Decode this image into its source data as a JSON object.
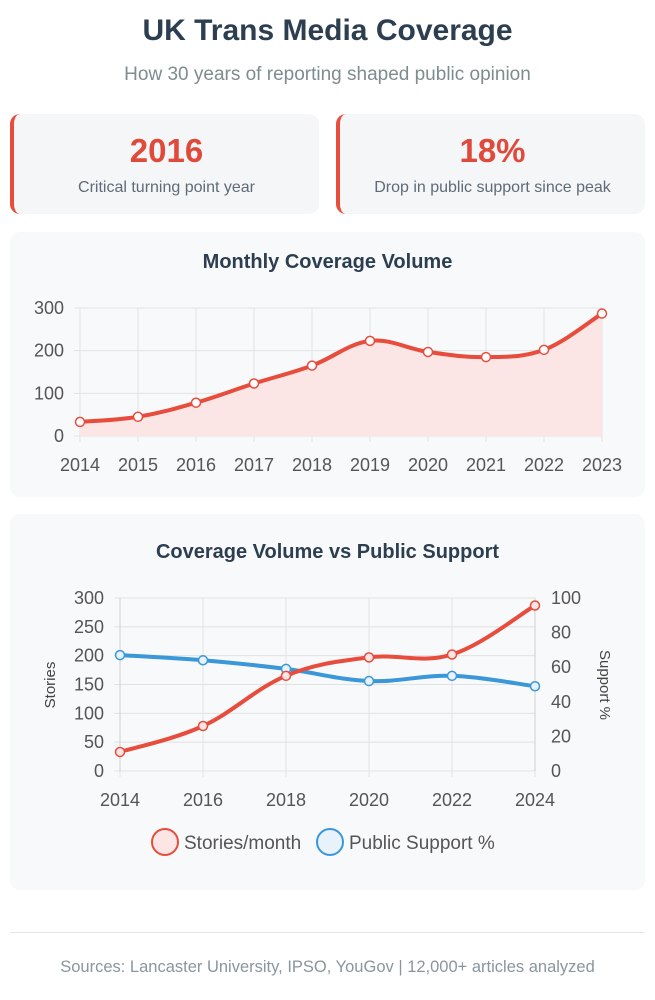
{
  "header": {
    "title": "UK Trans Media Coverage",
    "subtitle": "How 30 years of reporting shaped public opinion"
  },
  "stats": [
    {
      "value": "2016",
      "label": "Critical turning point year"
    },
    {
      "value": "18%",
      "label": "Drop in public support since peak"
    }
  ],
  "colors": {
    "accent": "#e74c3c",
    "support": "#3a97d8",
    "area_fill": "#fbe5e5"
  },
  "chart_data": [
    {
      "type": "area",
      "title": "Monthly Coverage Volume",
      "x": [
        "2014",
        "2015",
        "2016",
        "2017",
        "2018",
        "2019",
        "2020",
        "2021",
        "2022",
        "2023"
      ],
      "series": [
        {
          "name": "Stories/month",
          "values": [
            33,
            45,
            78,
            123,
            165,
            223,
            197,
            185,
            202,
            287
          ]
        }
      ],
      "ylim": [
        0,
        300
      ],
      "yticks": [
        0,
        100,
        200,
        300
      ],
      "xlabel": "",
      "ylabel": "",
      "grid": true
    },
    {
      "type": "line",
      "title": "Coverage Volume vs Public Support",
      "x": [
        "2014",
        "2016",
        "2018",
        "2020",
        "2022",
        "2024"
      ],
      "series": [
        {
          "name": "Stories/month",
          "axis": "left",
          "values": [
            33,
            78,
            165,
            197,
            202,
            287
          ]
        },
        {
          "name": "Public Support %",
          "axis": "right",
          "values": [
            67,
            64,
            59,
            52,
            55,
            49
          ]
        }
      ],
      "ylim_left": [
        0,
        300
      ],
      "yticks_left": [
        0,
        50,
        100,
        150,
        200,
        250,
        300
      ],
      "ylim_right": [
        0,
        100
      ],
      "yticks_right": [
        0,
        20,
        40,
        60,
        80,
        100
      ],
      "ylabel_left": "Stories",
      "ylabel_right": "Support %",
      "legend": "bottom",
      "grid": true
    }
  ],
  "footer": {
    "text": "Sources: Lancaster University, IPSO, YouGov | 12,000+ articles analyzed"
  }
}
